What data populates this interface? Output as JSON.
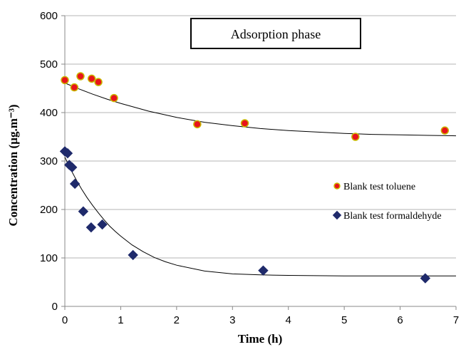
{
  "chart_data": {
    "type": "scatter",
    "title": "",
    "annotation": "Adsorption phase",
    "xlabel": "Time (h)",
    "ylabel": "Concentration (µg.m⁻³)",
    "xlim": [
      0,
      7
    ],
    "ylim": [
      0,
      600
    ],
    "xticks": [
      0,
      1,
      2,
      3,
      4,
      5,
      6,
      7
    ],
    "yticks": [
      0,
      100,
      200,
      300,
      400,
      500,
      600
    ],
    "grid": {
      "horizontal": true,
      "vertical": false
    },
    "legend_position": "right",
    "series": [
      {
        "name": "Blank test toluene",
        "marker": "circle",
        "color": "#e8141b",
        "edge_color": "#c9b800",
        "x": [
          0.0,
          0.17,
          0.28,
          0.48,
          0.6,
          0.88,
          2.37,
          3.22,
          5.2,
          6.8
        ],
        "y": [
          467,
          452,
          475,
          470,
          463,
          430,
          376,
          378,
          350,
          363
        ],
        "fit": {
          "color": "#000000",
          "x": [
            0.0,
            0.25,
            0.5,
            0.75,
            1.0,
            1.5,
            2.0,
            2.5,
            3.0,
            3.5,
            4.0,
            4.5,
            5.0,
            5.5,
            6.0,
            6.5,
            7.0
          ],
          "y": [
            461,
            449,
            438,
            428,
            419,
            403,
            390,
            380,
            373,
            367,
            363,
            360,
            357,
            355,
            354,
            353,
            352
          ]
        }
      },
      {
        "name": "Blank test formaldehyde",
        "marker": "diamond",
        "color": "#1f2a6b",
        "edge_color": "#1f2a6b",
        "x": [
          0.0,
          0.05,
          0.08,
          0.13,
          0.18,
          0.33,
          0.47,
          0.67,
          1.22,
          3.55,
          6.45
        ],
        "y": [
          320,
          316,
          292,
          287,
          253,
          196,
          163,
          169,
          106,
          74,
          58
        ],
        "fit": {
          "color": "#000000",
          "x": [
            0.0,
            0.1,
            0.2,
            0.3,
            0.4,
            0.5,
            0.6,
            0.7,
            0.8,
            0.9,
            1.0,
            1.2,
            1.4,
            1.6,
            1.8,
            2.0,
            2.5,
            3.0,
            3.5,
            4.0,
            5.0,
            6.0,
            7.0
          ],
          "y": [
            308,
            284,
            262,
            242,
            224,
            208,
            193,
            179,
            166,
            155,
            145,
            127,
            113,
            101,
            92,
            85,
            73,
            67,
            65,
            64,
            63,
            63,
            63
          ]
        }
      }
    ]
  }
}
